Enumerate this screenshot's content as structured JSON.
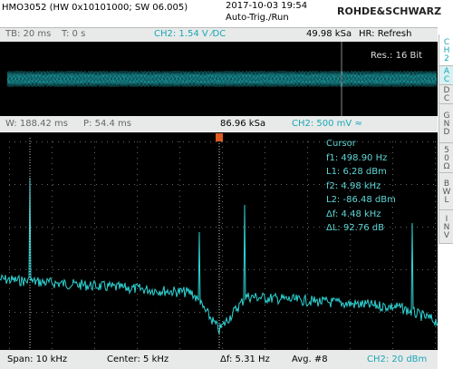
{
  "header": {
    "model": "HMO3052 (HW 0x10101000; SW 06.005)",
    "datetime": "2017-10-03 19:54",
    "trigger": "Auto-Trig./Run",
    "brand": "ROHDE&SCHWARZ"
  },
  "timebase_bar": {
    "tb": "TB: 20 ms",
    "t": "T: 0 s",
    "channel": "CH2: 1.54 V ⁄DC",
    "sample_rate": "49.98 kSa",
    "mode": "HR: Refresh"
  },
  "waveform": {
    "resolution": "Res.: 16 Bit"
  },
  "fft_bar": {
    "window": "W: 188.42 ms",
    "position": "P: 54.4 ms",
    "sample_rate": "86.96 kSa",
    "channel": "CH2: 500 mV ≈"
  },
  "cursor": {
    "title": "Cursor",
    "f1": "f1: 498.90 Hz",
    "l1": "L1: 6.28 dBm",
    "f2": "f2: 4.98 kHz",
    "l2": "L2: -86.48 dBm",
    "df": "Δf: 4.48 kHz",
    "dl": "ΔL: 92.76 dB"
  },
  "footer": {
    "span": "Span: 10 kHz",
    "center": "Center: 5 kHz",
    "df": "Δf: 5.31 Hz",
    "avg": "Avg. #8",
    "channel": "CH2: 20 dBm"
  },
  "side_menu": [
    "CH2",
    "AC",
    "DC",
    "GND",
    "50Ω",
    "BWL",
    "INV"
  ]
}
